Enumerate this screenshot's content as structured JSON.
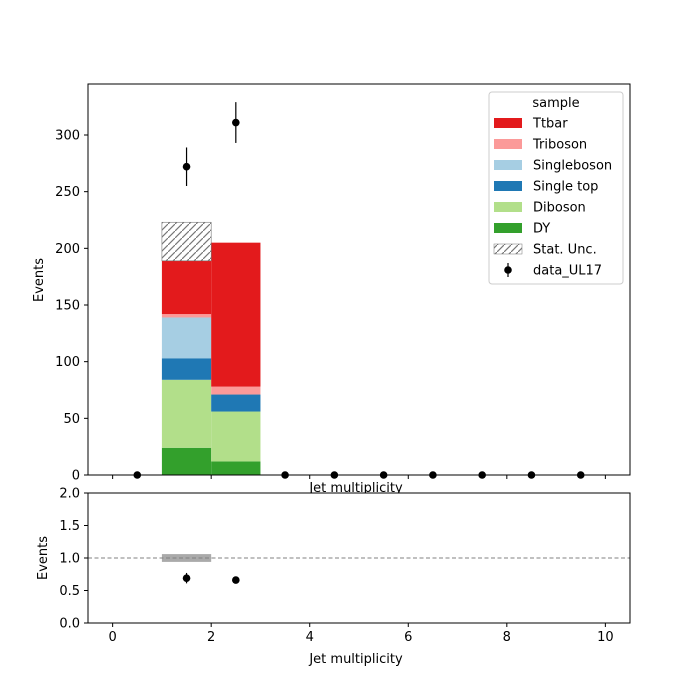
{
  "chart_data": [
    {
      "type": "bar",
      "stacked": true,
      "panel": "main",
      "xlabel": "Jet multiplicity",
      "ylabel": "Events",
      "xlim": [
        -0.5,
        10.5
      ],
      "ylim": [
        0,
        345
      ],
      "x_ticks": [
        0,
        2,
        4,
        6,
        8,
        10
      ],
      "y_ticks": [
        0,
        50,
        100,
        150,
        200,
        250,
        300
      ],
      "bin_edges": [
        0,
        1,
        2,
        3,
        4,
        5,
        6,
        7,
        8,
        9,
        10
      ],
      "series": [
        {
          "name": "DY",
          "color": "#33a02c",
          "values": [
            0,
            24,
            12,
            0,
            0,
            0,
            0,
            0,
            0,
            0
          ]
        },
        {
          "name": "Diboson",
          "color": "#b2df8a",
          "values": [
            0,
            60,
            44,
            0,
            0,
            0,
            0,
            0,
            0,
            0
          ]
        },
        {
          "name": "Single top",
          "color": "#1f78b4",
          "values": [
            0,
            19,
            15,
            0,
            0,
            0,
            0,
            0,
            0,
            0
          ]
        },
        {
          "name": "Singleboson",
          "color": "#a6cee3",
          "values": [
            0,
            36,
            0,
            0,
            0,
            0,
            0,
            0,
            0,
            0
          ]
        },
        {
          "name": "Triboson",
          "color": "#fb9a99",
          "values": [
            0,
            3,
            7,
            0,
            0,
            0,
            0,
            0,
            0,
            0
          ]
        },
        {
          "name": "Ttbar",
          "color": "#e31a1c",
          "values": [
            0,
            47,
            127,
            0,
            0,
            0,
            0,
            0,
            0,
            0
          ]
        }
      ],
      "stat_unc": {
        "name": "Stat. Unc.",
        "bins": [
          {
            "bin": 1,
            "low": 189,
            "high": 223
          }
        ]
      },
      "data": {
        "name": "data_UL17",
        "x": [
          0.5,
          1.5,
          2.5,
          3.5,
          4.5,
          5.5,
          6.5,
          7.5,
          8.5,
          9.5
        ],
        "y": [
          0,
          272,
          311,
          0,
          0,
          0,
          0,
          0,
          0,
          0
        ],
        "err": [
          0,
          17,
          18,
          0,
          0,
          0,
          0,
          0,
          0,
          0
        ]
      },
      "legend": {
        "title": "sample",
        "placement": "top-right",
        "entries": [
          "Ttbar",
          "Triboson",
          "Singleboson",
          "Single top",
          "Diboson",
          "DY",
          "Stat. Unc.",
          "data_UL17"
        ]
      }
    },
    {
      "type": "scatter",
      "panel": "ratio",
      "xlabel": "Jet multiplicity",
      "ylabel": "Events",
      "xlim": [
        -0.5,
        10.5
      ],
      "ylim": [
        0,
        2
      ],
      "x_ticks": [
        0,
        2,
        4,
        6,
        8,
        10
      ],
      "y_ticks": [
        0.0,
        0.5,
        1.0,
        1.5,
        2.0
      ],
      "reference_line": 1.0,
      "unc_band": [
        {
          "x_low": 1,
          "x_high": 2,
          "low": 0.94,
          "high": 1.06
        }
      ],
      "points": {
        "x": [
          1.5,
          2.5
        ],
        "y": [
          0.69,
          0.66
        ],
        "err": [
          0.08,
          0.02
        ]
      }
    }
  ]
}
